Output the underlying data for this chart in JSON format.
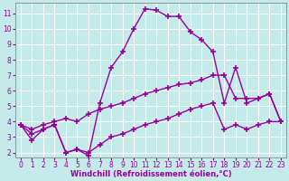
{
  "xlabel": "Windchill (Refroidissement éolien,°C)",
  "bg_color": "#c5eaea",
  "line_color": "#990099",
  "grid_color": "#ffffff",
  "xlim": [
    -0.5,
    23.5
  ],
  "ylim": [
    1.7,
    11.7
  ],
  "xticks": [
    0,
    1,
    2,
    3,
    4,
    5,
    6,
    7,
    8,
    9,
    10,
    11,
    12,
    13,
    14,
    15,
    16,
    17,
    18,
    19,
    20,
    21,
    22,
    23
  ],
  "yticks": [
    2,
    3,
    4,
    5,
    6,
    7,
    8,
    9,
    10,
    11
  ],
  "series1_x": [
    0,
    1,
    2,
    3,
    4,
    5,
    6,
    7,
    8,
    9,
    10,
    11,
    12,
    13,
    14,
    15,
    16,
    17,
    18,
    19,
    20,
    21,
    22,
    23
  ],
  "series1_y": [
    3.8,
    2.8,
    3.5,
    3.8,
    2.0,
    2.2,
    1.8,
    5.2,
    7.5,
    8.5,
    10.0,
    11.3,
    11.2,
    10.8,
    10.8,
    9.8,
    9.3,
    8.5,
    5.2,
    7.5,
    5.2,
    5.5,
    5.8,
    4.0
  ],
  "series2_x": [
    0,
    1,
    2,
    3,
    4,
    5,
    6,
    7,
    8,
    9,
    10,
    11,
    12,
    13,
    14,
    15,
    16,
    17,
    18,
    19,
    20,
    21,
    22,
    23
  ],
  "series2_y": [
    3.8,
    3.5,
    3.8,
    4.0,
    4.2,
    4.0,
    4.5,
    4.8,
    5.0,
    5.2,
    5.5,
    5.8,
    6.0,
    6.2,
    6.4,
    6.5,
    6.7,
    7.0,
    7.0,
    5.5,
    5.5,
    5.5,
    5.8,
    4.0
  ],
  "series3_x": [
    0,
    1,
    2,
    3,
    4,
    5,
    6,
    7,
    8,
    9,
    10,
    11,
    12,
    13,
    14,
    15,
    16,
    17,
    18,
    19,
    20,
    21,
    22,
    23
  ],
  "series3_y": [
    3.8,
    3.2,
    3.5,
    3.8,
    2.0,
    2.2,
    2.0,
    2.5,
    3.0,
    3.2,
    3.5,
    3.8,
    4.0,
    4.2,
    4.5,
    4.8,
    5.0,
    5.2,
    3.5,
    3.8,
    3.5,
    3.8,
    4.0,
    4.0
  ],
  "marker": "+",
  "markersize": 4,
  "markeredgewidth": 1.2,
  "linewidth": 1.0,
  "tick_fontsize": 5.5,
  "label_fontsize": 6.0
}
